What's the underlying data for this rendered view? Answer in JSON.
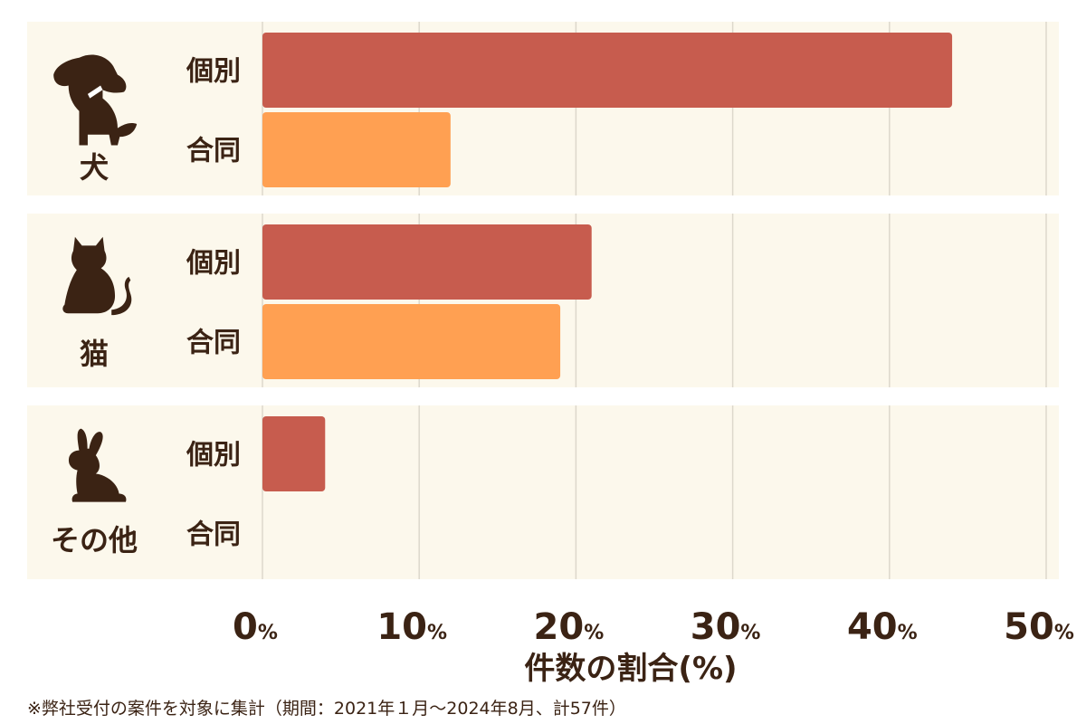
{
  "chart_data": {
    "type": "bar",
    "orientation": "horizontal",
    "xlabel": "件数の割合(%)",
    "xlim": [
      0,
      50
    ],
    "x_ticks": [
      {
        "num": "0",
        "unit": "%"
      },
      {
        "num": "10",
        "unit": "%"
      },
      {
        "num": "20",
        "unit": "%"
      },
      {
        "num": "30",
        "unit": "%"
      },
      {
        "num": "40",
        "unit": "%"
      },
      {
        "num": "50",
        "unit": "%"
      }
    ],
    "grid": true,
    "groups": [
      {
        "name": "犬",
        "icon": "dog-icon",
        "bars": [
          {
            "label": "個別",
            "value": 44
          },
          {
            "label": "合同",
            "value": 12
          }
        ]
      },
      {
        "name": "猫",
        "icon": "cat-icon",
        "bars": [
          {
            "label": "個別",
            "value": 21
          },
          {
            "label": "合同",
            "value": 19
          }
        ]
      },
      {
        "name": "その他",
        "icon": "rabbit-icon",
        "bars": [
          {
            "label": "個別",
            "value": 4
          },
          {
            "label": "合同",
            "value": 0
          }
        ]
      }
    ],
    "colors": {
      "個別": "#c75c4e",
      "合同": "#ffa052",
      "panel": "#fcf8ec",
      "grid": "#ddd8cc",
      "text": "#3b2314"
    }
  },
  "footnote": "※弊社受付の案件を対象に集計（期間：2021年１月～2024年8月、計57件）"
}
